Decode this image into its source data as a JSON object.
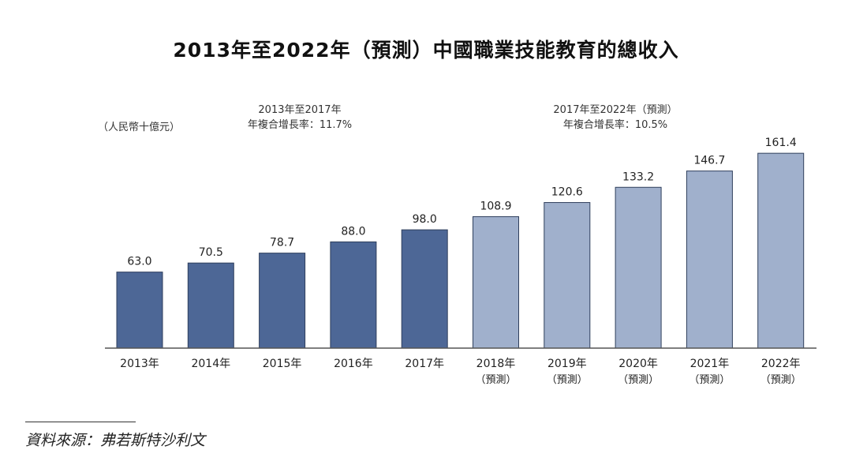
{
  "title": "2013年至2022年（預測）中國職業技能教育的總收入",
  "unit_label": "（人民幣十億元）",
  "cagr": [
    {
      "period": "2013年至2017年",
      "rate": "年複合增長率：11.7%"
    },
    {
      "period": "2017年至2022年（預測）",
      "rate": "年複合增長率：10.5%"
    }
  ],
  "source": "資料來源：弗若斯特沙利文",
  "colors": {
    "actual": "#4d6796",
    "forecast": "#a0b0cc",
    "bar_edge": "#2f3f5c",
    "axis": "#555555"
  },
  "chart_data": {
    "type": "bar",
    "title": "2013年至2022年（預測）中國職業技能教育的總收入",
    "ylabel": "（人民幣十億元）",
    "xlabel": "",
    "ylim": [
      0,
      170
    ],
    "categories": [
      "2013年",
      "2014年",
      "2015年",
      "2016年",
      "2017年",
      "2018年",
      "2019年",
      "2020年",
      "2021年",
      "2022年"
    ],
    "sublabels": [
      "",
      "",
      "",
      "",
      "",
      "（預測）",
      "（預測）",
      "（預測）",
      "（預測）",
      "（預測）"
    ],
    "values": [
      63.0,
      70.5,
      78.7,
      88.0,
      98.0,
      108.9,
      120.6,
      133.2,
      146.7,
      161.4
    ],
    "value_labels": [
      "63.0",
      "70.5",
      "78.7",
      "88.0",
      "98.0",
      "108.9",
      "120.6",
      "133.2",
      "146.7",
      "161.4"
    ],
    "forecast": [
      false,
      false,
      false,
      false,
      false,
      true,
      true,
      true,
      true,
      true
    ]
  }
}
